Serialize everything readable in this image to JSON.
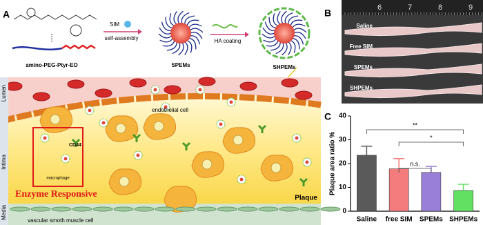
{
  "panel_a": {
    "letter": "A",
    "polymer": "amino-PEG-Ptyr-EO",
    "drug": "SIM",
    "step1": "self-assembly",
    "micelle1": "SPEMs",
    "step2": "HA coating",
    "micelle2": "SHPEMs",
    "lumen": "Lumen",
    "intima": "Intima",
    "media": "Media",
    "endothelial": "endothelial cell",
    "receptor": "CD44",
    "macrophage": "macrophage",
    "responsive": "Enzyme Responsive",
    "plaque": "Plaque",
    "smooth_muscle": "vascular smoth muscle cell"
  },
  "panel_b": {
    "letter": "B",
    "ruler": [
      "6",
      "7",
      "8",
      "9"
    ],
    "rows": [
      "Saline",
      "Free SIM",
      "SPEMs",
      "SHPEMs"
    ]
  },
  "panel_c": {
    "letter": "C",
    "significance": [
      "**",
      "n.s.",
      "*"
    ]
  },
  "chart_data": {
    "type": "bar",
    "ylabel": "Plaque area ratio %",
    "categories": [
      "Saline",
      "free SIM",
      "SPEMs",
      "SHPEMs"
    ],
    "values": [
      23.5,
      17.8,
      16.3,
      8.7
    ],
    "errors": [
      3.8,
      4.3,
      2.5,
      2.6
    ],
    "colors": [
      "#5a5a5a",
      "#f47c7c",
      "#9a7fd8",
      "#62e062"
    ],
    "ylim": [
      0,
      40
    ],
    "yticks": [
      0,
      10,
      20,
      30,
      40
    ]
  }
}
